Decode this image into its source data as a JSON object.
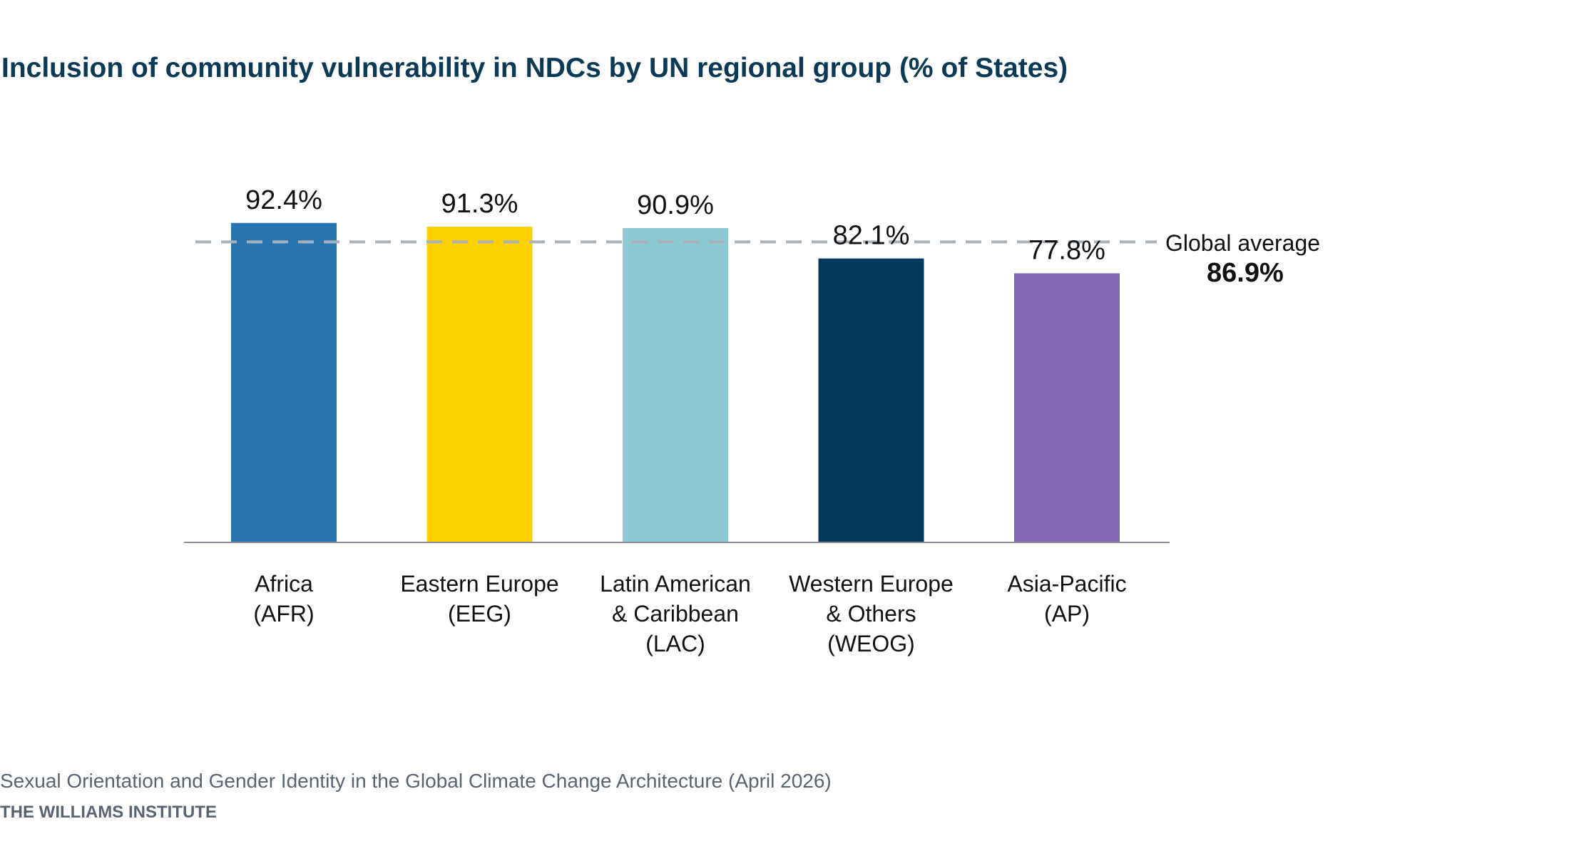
{
  "chart_data": {
    "type": "bar",
    "title": "Inclusion of community vulnerability in NDCs by UN regional group (% of States)",
    "categories": [
      [
        "Africa",
        "(AFR)"
      ],
      [
        "Eastern Europe",
        "(EEG)"
      ],
      [
        "Latin American",
        "& Caribbean",
        "(LAC)"
      ],
      [
        "Western Europe",
        "& Others",
        "(WEOG)"
      ],
      [
        "Asia-Pacific",
        "(AP)"
      ]
    ],
    "values": [
      92.4,
      91.3,
      90.9,
      82.1,
      77.8
    ],
    "value_labels": [
      "92.4%",
      "91.3%",
      "90.9%",
      "82.1%",
      "77.8%"
    ],
    "colors": [
      "#2874ae",
      "#fdd000",
      "#8cc9d3",
      "#03395a",
      "#8068b2"
    ],
    "ylim": [
      0,
      100
    ],
    "grid": false,
    "reference_line": {
      "label": "Global average",
      "value": 86.9,
      "value_label": "86.9%",
      "color": "#a9b1ba"
    },
    "xlabel": "",
    "ylabel": ""
  },
  "footer": {
    "source": "Sexual Orientation and Gender Identity in the Global Climate Change Architecture (April 2026)",
    "org": "THE WILLIAMS INSTITUTE"
  }
}
